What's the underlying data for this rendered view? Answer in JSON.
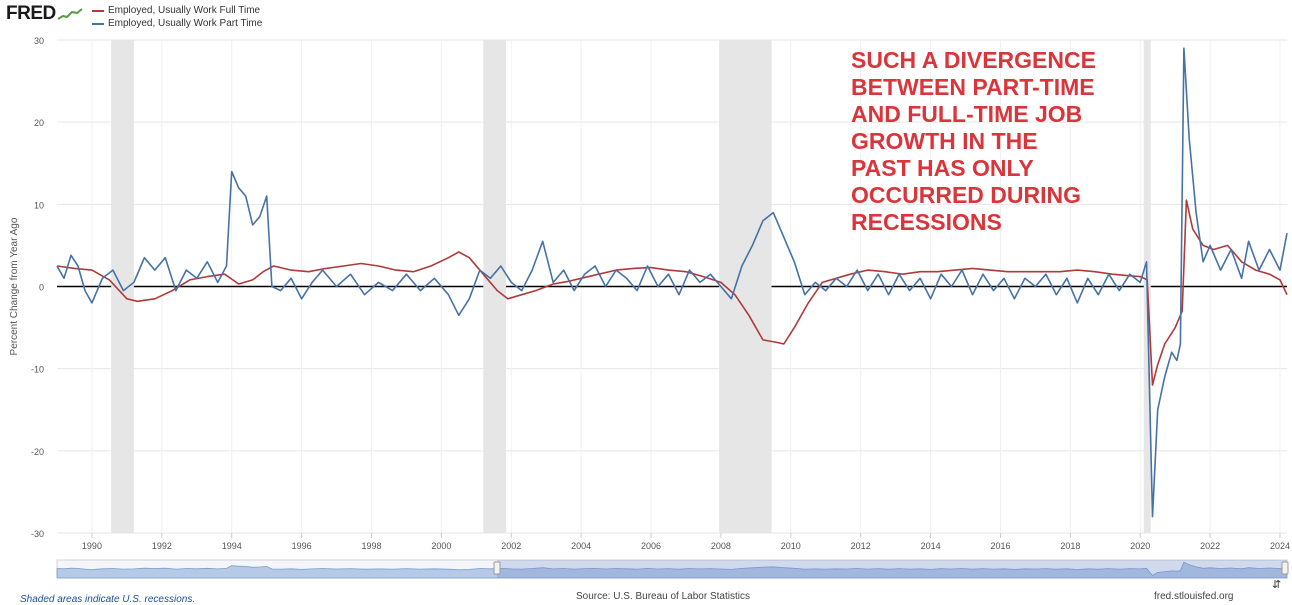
{
  "header": {
    "logo_text": "FRED",
    "logo_icon": "line-chart-icon"
  },
  "annotation_lines": [
    "SUCH A DIVERGENCE",
    "BETWEEN PART-TIME",
    "AND FULL-TIME JOB",
    "GROWTH IN THE",
    "PAST HAS ONLY",
    "OCCURRED DURING",
    "RECESSIONS"
  ],
  "footer": {
    "recession_note": "Shaded areas indicate U.S. recessions.",
    "source": "Source: U.S. Bureau of Labor Statistics",
    "site": "fred.stlouisfed.org"
  },
  "navigator": {
    "icon": "expand-icon"
  },
  "chart_data": {
    "type": "line",
    "title": "",
    "xlabel": "",
    "ylabel": "Percent Change from Year Ago",
    "xlim": [
      1989.0,
      2024.2
    ],
    "ylim": [
      -30,
      30
    ],
    "x_ticks": [
      "1990",
      "1992",
      "1994",
      "1996",
      "1998",
      "2000",
      "2002",
      "2004",
      "2006",
      "2008",
      "2010",
      "2012",
      "2014",
      "2016",
      "2018",
      "2020",
      "2022",
      "2024"
    ],
    "y_ticks": [
      30,
      20,
      10,
      0,
      -10,
      -20,
      -30
    ],
    "grid": true,
    "legend_position": "top-left",
    "zero_line": true,
    "recessions": [
      [
        1990.55,
        1991.2
      ],
      [
        2001.2,
        2001.85
      ],
      [
        2007.95,
        2009.45
      ],
      [
        2020.1,
        2020.3
      ]
    ],
    "series": [
      {
        "name": "Employed, Usually Work Full Time",
        "color": "#b03a3a",
        "points": [
          [
            1989.0,
            2.5
          ],
          [
            1989.5,
            2.2
          ],
          [
            1990.0,
            2.0
          ],
          [
            1990.5,
            0.8
          ],
          [
            1991.0,
            -1.5
          ],
          [
            1991.3,
            -1.8
          ],
          [
            1991.8,
            -1.5
          ],
          [
            1992.3,
            -0.5
          ],
          [
            1992.8,
            0.8
          ],
          [
            1993.3,
            1.2
          ],
          [
            1993.8,
            1.5
          ],
          [
            1994.2,
            0.3
          ],
          [
            1994.6,
            0.8
          ],
          [
            1994.9,
            1.8
          ],
          [
            1995.2,
            2.5
          ],
          [
            1995.7,
            2.0
          ],
          [
            1996.2,
            1.8
          ],
          [
            1996.7,
            2.2
          ],
          [
            1997.2,
            2.5
          ],
          [
            1997.7,
            2.8
          ],
          [
            1998.2,
            2.5
          ],
          [
            1998.7,
            2.0
          ],
          [
            1999.2,
            1.8
          ],
          [
            1999.7,
            2.5
          ],
          [
            2000.2,
            3.5
          ],
          [
            2000.5,
            4.2
          ],
          [
            2000.8,
            3.5
          ],
          [
            2001.2,
            1.5
          ],
          [
            2001.6,
            -0.5
          ],
          [
            2001.9,
            -1.5
          ],
          [
            2002.3,
            -1.0
          ],
          [
            2002.7,
            -0.5
          ],
          [
            2003.2,
            0.3
          ],
          [
            2003.6,
            0.6
          ],
          [
            2004.0,
            1.0
          ],
          [
            2004.5,
            1.5
          ],
          [
            2005.0,
            2.0
          ],
          [
            2005.5,
            2.2
          ],
          [
            2006.0,
            2.3
          ],
          [
            2006.5,
            2.0
          ],
          [
            2007.0,
            1.8
          ],
          [
            2007.5,
            1.2
          ],
          [
            2008.0,
            0.5
          ],
          [
            2008.4,
            -1.0
          ],
          [
            2008.8,
            -3.5
          ],
          [
            2009.2,
            -6.5
          ],
          [
            2009.6,
            -6.8
          ],
          [
            2009.8,
            -7.0
          ],
          [
            2010.1,
            -5.0
          ],
          [
            2010.5,
            -2.0
          ],
          [
            2010.9,
            0.5
          ],
          [
            2011.3,
            1.0
          ],
          [
            2011.7,
            1.5
          ],
          [
            2012.2,
            2.0
          ],
          [
            2012.7,
            1.8
          ],
          [
            2013.2,
            1.5
          ],
          [
            2013.7,
            1.8
          ],
          [
            2014.2,
            1.8
          ],
          [
            2014.7,
            2.0
          ],
          [
            2015.2,
            2.2
          ],
          [
            2015.7,
            2.0
          ],
          [
            2016.2,
            1.8
          ],
          [
            2016.7,
            1.8
          ],
          [
            2017.2,
            1.8
          ],
          [
            2017.7,
            1.8
          ],
          [
            2018.2,
            2.0
          ],
          [
            2018.7,
            1.8
          ],
          [
            2019.2,
            1.5
          ],
          [
            2019.7,
            1.3
          ],
          [
            2020.0,
            1.2
          ],
          [
            2020.2,
            0.8
          ],
          [
            2020.35,
            -12.0
          ],
          [
            2020.5,
            -9.5
          ],
          [
            2020.7,
            -7.0
          ],
          [
            2021.0,
            -5.0
          ],
          [
            2021.2,
            -3.0
          ],
          [
            2021.32,
            10.5
          ],
          [
            2021.5,
            7.0
          ],
          [
            2021.8,
            5.0
          ],
          [
            2022.1,
            4.5
          ],
          [
            2022.5,
            5.0
          ],
          [
            2022.9,
            3.0
          ],
          [
            2023.3,
            2.0
          ],
          [
            2023.7,
            1.5
          ],
          [
            2024.0,
            0.8
          ],
          [
            2024.2,
            -1.0
          ]
        ]
      },
      {
        "name": "Employed, Usually Work Part Time",
        "color": "#4572a7",
        "points": [
          [
            1989.0,
            2.5
          ],
          [
            1989.2,
            1.0
          ],
          [
            1989.4,
            3.8
          ],
          [
            1989.6,
            2.5
          ],
          [
            1989.8,
            -0.5
          ],
          [
            1990.0,
            -2.0
          ],
          [
            1990.3,
            1.0
          ],
          [
            1990.6,
            2.0
          ],
          [
            1990.9,
            -0.5
          ],
          [
            1991.2,
            0.5
          ],
          [
            1991.5,
            3.5
          ],
          [
            1991.8,
            2.0
          ],
          [
            1992.1,
            3.5
          ],
          [
            1992.4,
            -0.5
          ],
          [
            1992.7,
            2.0
          ],
          [
            1993.0,
            1.0
          ],
          [
            1993.3,
            3.0
          ],
          [
            1993.6,
            0.5
          ],
          [
            1993.85,
            2.5
          ],
          [
            1994.0,
            14.0
          ],
          [
            1994.2,
            12.0
          ],
          [
            1994.4,
            11.0
          ],
          [
            1994.6,
            7.5
          ],
          [
            1994.8,
            8.5
          ],
          [
            1995.0,
            11.0
          ],
          [
            1995.15,
            0.0
          ],
          [
            1995.4,
            -0.5
          ],
          [
            1995.7,
            1.0
          ],
          [
            1996.0,
            -1.5
          ],
          [
            1996.3,
            0.5
          ],
          [
            1996.6,
            2.0
          ],
          [
            1997.0,
            0.0
          ],
          [
            1997.4,
            1.5
          ],
          [
            1997.8,
            -1.0
          ],
          [
            1998.2,
            0.5
          ],
          [
            1998.6,
            -0.5
          ],
          [
            1999.0,
            1.5
          ],
          [
            1999.4,
            -0.5
          ],
          [
            1999.8,
            1.0
          ],
          [
            2000.2,
            -1.0
          ],
          [
            2000.5,
            -3.5
          ],
          [
            2000.8,
            -1.5
          ],
          [
            2001.1,
            2.0
          ],
          [
            2001.4,
            1.0
          ],
          [
            2001.7,
            2.5
          ],
          [
            2002.0,
            0.5
          ],
          [
            2002.3,
            -0.5
          ],
          [
            2002.6,
            2.0
          ],
          [
            2002.9,
            5.5
          ],
          [
            2003.2,
            0.5
          ],
          [
            2003.5,
            2.0
          ],
          [
            2003.8,
            -0.5
          ],
          [
            2004.1,
            1.5
          ],
          [
            2004.4,
            2.5
          ],
          [
            2004.7,
            0.0
          ],
          [
            2005.0,
            2.0
          ],
          [
            2005.3,
            1.0
          ],
          [
            2005.6,
            -0.5
          ],
          [
            2005.9,
            2.5
          ],
          [
            2006.2,
            0.0
          ],
          [
            2006.5,
            1.5
          ],
          [
            2006.8,
            -1.0
          ],
          [
            2007.1,
            2.0
          ],
          [
            2007.4,
            0.5
          ],
          [
            2007.7,
            1.5
          ],
          [
            2008.0,
            0.0
          ],
          [
            2008.3,
            -1.5
          ],
          [
            2008.6,
            2.5
          ],
          [
            2008.9,
            5.0
          ],
          [
            2009.2,
            8.0
          ],
          [
            2009.5,
            9.0
          ],
          [
            2009.8,
            6.0
          ],
          [
            2010.1,
            3.0
          ],
          [
            2010.4,
            -1.0
          ],
          [
            2010.7,
            0.5
          ],
          [
            2011.0,
            -0.5
          ],
          [
            2011.3,
            1.0
          ],
          [
            2011.6,
            0.0
          ],
          [
            2011.9,
            2.0
          ],
          [
            2012.2,
            -0.5
          ],
          [
            2012.5,
            1.5
          ],
          [
            2012.8,
            -1.0
          ],
          [
            2013.1,
            1.5
          ],
          [
            2013.4,
            -0.5
          ],
          [
            2013.7,
            1.0
          ],
          [
            2014.0,
            -1.5
          ],
          [
            2014.3,
            1.5
          ],
          [
            2014.6,
            0.0
          ],
          [
            2014.9,
            2.0
          ],
          [
            2015.2,
            -1.0
          ],
          [
            2015.5,
            1.5
          ],
          [
            2015.8,
            -0.5
          ],
          [
            2016.1,
            1.0
          ],
          [
            2016.4,
            -1.5
          ],
          [
            2016.7,
            1.0
          ],
          [
            2017.0,
            0.0
          ],
          [
            2017.3,
            1.5
          ],
          [
            2017.6,
            -1.0
          ],
          [
            2017.9,
            1.0
          ],
          [
            2018.2,
            -2.0
          ],
          [
            2018.5,
            1.0
          ],
          [
            2018.8,
            -1.0
          ],
          [
            2019.1,
            1.5
          ],
          [
            2019.4,
            -0.5
          ],
          [
            2019.7,
            1.5
          ],
          [
            2020.0,
            0.5
          ],
          [
            2020.18,
            3.0
          ],
          [
            2020.35,
            -28.0
          ],
          [
            2020.5,
            -15.0
          ],
          [
            2020.7,
            -11.0
          ],
          [
            2020.9,
            -8.0
          ],
          [
            2021.05,
            -9.0
          ],
          [
            2021.15,
            -7.0
          ],
          [
            2021.25,
            29.0
          ],
          [
            2021.4,
            18.0
          ],
          [
            2021.6,
            9.0
          ],
          [
            2021.8,
            3.0
          ],
          [
            2022.0,
            5.0
          ],
          [
            2022.3,
            2.0
          ],
          [
            2022.6,
            4.5
          ],
          [
            2022.9,
            1.0
          ],
          [
            2023.1,
            5.5
          ],
          [
            2023.4,
            2.0
          ],
          [
            2023.7,
            4.5
          ],
          [
            2024.0,
            2.0
          ],
          [
            2024.2,
            6.5
          ]
        ]
      }
    ]
  }
}
